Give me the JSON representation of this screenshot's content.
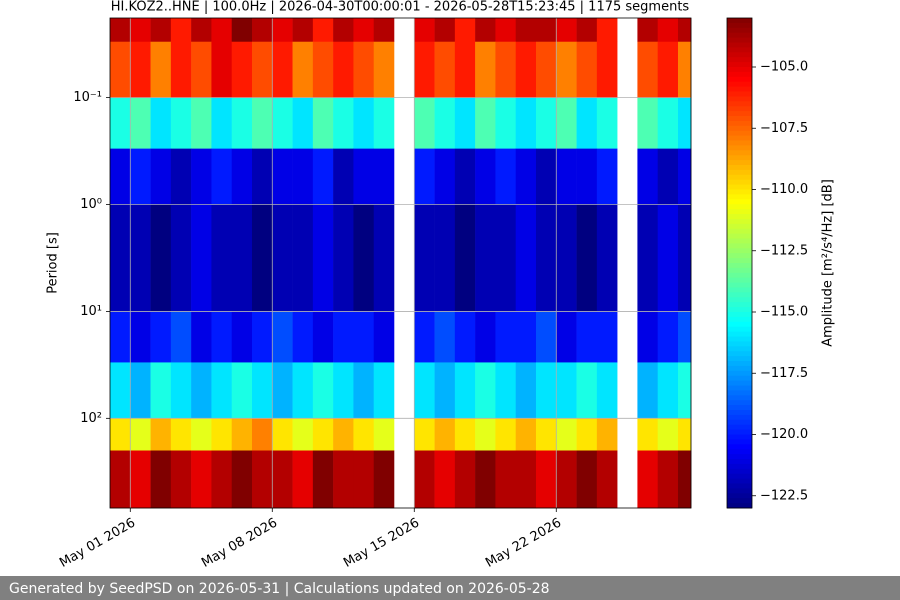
{
  "chart_data": {
    "type": "heatmap",
    "title": "HI.KOZ2..HNE | 100.0Hz | 2026-04-30T00:00:01 - 2026-05-28T15:23:45 | 1175 segments",
    "ylabel": "Period [s]",
    "colorbar_label": "Amplitude [m²/s⁴/Hz] [dB]",
    "colormap": "jet",
    "grid": true,
    "log_y": true,
    "y_inverted": true,
    "x": [
      "2026-04-30",
      "2026-05-01",
      "2026-05-02",
      "2026-05-03",
      "2026-05-04",
      "2026-05-05",
      "2026-05-06",
      "2026-05-07",
      "2026-05-08",
      "2026-05-09",
      "2026-05-10",
      "2026-05-11",
      "2026-05-12",
      "2026-05-13",
      "2026-05-14",
      "2026-05-15",
      "2026-05-16",
      "2026-05-17",
      "2026-05-18",
      "2026-05-19",
      "2026-05-20",
      "2026-05-21",
      "2026-05-22",
      "2026-05-23",
      "2026-05-24",
      "2026-05-25",
      "2026-05-26",
      "2026-05-27",
      "2026-05-28"
    ],
    "xlim": [
      "2026-04-30T00:00:01",
      "2026-05-28T15:23:45"
    ],
    "xticks": [
      {
        "value": "2026-05-01",
        "label": "May 01 2026"
      },
      {
        "value": "2026-05-08",
        "label": "May 08 2026"
      },
      {
        "value": "2026-05-15",
        "label": "May 15 2026"
      },
      {
        "value": "2026-05-22",
        "label": "May 22 2026"
      }
    ],
    "y_bins": [
      0.018,
      0.03,
      0.1,
      0.3,
      1,
      10,
      30,
      100,
      200,
      690
    ],
    "ylim": [
      0.018,
      690
    ],
    "yticks": [
      {
        "value": 0.1,
        "label": "10⁻¹"
      },
      {
        "value": 1,
        "label": "10⁰"
      },
      {
        "value": 10,
        "label": "10¹"
      },
      {
        "value": 100,
        "label": "10²"
      }
    ],
    "values": [
      [
        -104,
        -105,
        -104,
        -106,
        -104,
        -105,
        -103,
        -104,
        -105,
        -104,
        -106,
        -104,
        -105,
        -104,
        null,
        -105,
        -104,
        -106,
        -104,
        -105,
        -104,
        -104,
        -105,
        -104,
        -106,
        null,
        -104,
        -105,
        -104
      ],
      [
        -107,
        -106,
        -108,
        -106,
        -107,
        -105,
        -106,
        -107,
        -106,
        -108,
        -107,
        -106,
        -107,
        -108,
        null,
        -106,
        -107,
        -106,
        -108,
        -107,
        -106,
        -107,
        -108,
        -107,
        -106,
        null,
        -107,
        -106,
        -108
      ],
      [
        -115,
        -114,
        -116,
        -115,
        -114,
        -116,
        -115,
        -114,
        -115,
        -116,
        -114,
        -115,
        -116,
        -115,
        null,
        -114,
        -115,
        -116,
        -114,
        -115,
        -116,
        -115,
        -114,
        -116,
        -115,
        null,
        -114,
        -115,
        -116
      ],
      [
        -121,
        -120,
        -121,
        -122,
        -121,
        -120,
        -121,
        -122,
        -121,
        -121,
        -120,
        -122,
        -121,
        -121,
        null,
        -120,
        -121,
        -122,
        -121,
        -120,
        -121,
        -122,
        -121,
        -121,
        -120,
        null,
        -121,
        -122,
        -121
      ],
      [
        -122,
        -122,
        -123,
        -122,
        -121,
        -122,
        -122,
        -123,
        -122,
        -122,
        -121,
        -122,
        -123,
        -122,
        null,
        -122,
        -122,
        -123,
        -122,
        -122,
        -121,
        -122,
        -122,
        -123,
        -122,
        null,
        -122,
        -121,
        -122
      ],
      [
        -120,
        -121,
        -120,
        -119,
        -121,
        -120,
        -121,
        -120,
        -119,
        -120,
        -121,
        -120,
        -120,
        -121,
        null,
        -120,
        -119,
        -120,
        -121,
        -120,
        -120,
        -119,
        -121,
        -120,
        -120,
        null,
        -121,
        -120,
        -119
      ],
      [
        -116,
        -117,
        -115,
        -116,
        -117,
        -116,
        -115,
        -116,
        -117,
        -116,
        -115,
        -116,
        -117,
        -116,
        null,
        -116,
        -117,
        -116,
        -115,
        -116,
        -117,
        -116,
        -116,
        -115,
        -116,
        null,
        -117,
        -116,
        -115
      ],
      [
        -110,
        -111,
        -109,
        -110,
        -111,
        -110,
        -109,
        -108,
        -110,
        -111,
        -110,
        -109,
        -110,
        -111,
        null,
        -110,
        -109,
        -110,
        -111,
        -110,
        -109,
        -110,
        -111,
        -110,
        -109,
        null,
        -110,
        -111,
        -110
      ],
      [
        -104,
        -105,
        -103,
        -104,
        -105,
        -104,
        -103,
        -104,
        -104,
        -105,
        -103,
        -104,
        -104,
        -103,
        null,
        -104,
        -105,
        -104,
        -103,
        -104,
        -104,
        -105,
        -104,
        -103,
        -104,
        null,
        -105,
        -104,
        -103
      ]
    ],
    "clim": [
      -123,
      -103
    ],
    "cticks": [
      {
        "value": -105,
        "label": "−105.0"
      },
      {
        "value": -107.5,
        "label": "−107.5"
      },
      {
        "value": -110,
        "label": "−110.0"
      },
      {
        "value": -112.5,
        "label": "−112.5"
      },
      {
        "value": -115,
        "label": "−115.0"
      },
      {
        "value": -117.5,
        "label": "−117.5"
      },
      {
        "value": -120,
        "label": "−120.0"
      },
      {
        "value": -122.5,
        "label": "−122.5"
      }
    ]
  },
  "footer": "Generated by SeedPSD on 2026-05-31 | Calculations updated on 2026-05-28"
}
